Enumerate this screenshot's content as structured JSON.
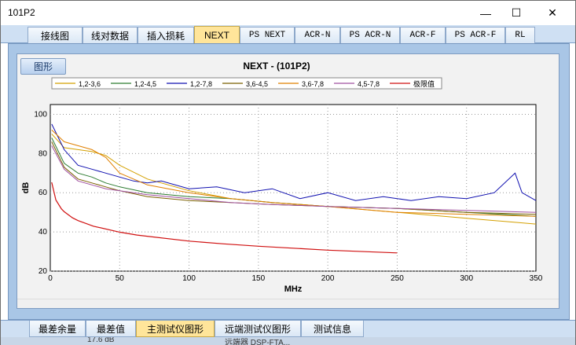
{
  "window": {
    "title": "101P2",
    "minimize_glyph": "—",
    "maximize_glyph": "☐",
    "close_glyph": "✕"
  },
  "tabs": [
    "接线图",
    "线对数据",
    "插入损耗",
    "NEXT",
    "PS NEXT",
    "ACR-N",
    "PS ACR-N",
    "ACR-F",
    "PS ACR-F",
    "RL"
  ],
  "active_tab": "NEXT",
  "graph_button": "图形",
  "bottom_tabs": [
    "最差余量",
    "最差值",
    "主测试仪图形",
    "远端测试仪图形",
    "测试信息"
  ],
  "active_bottom_tab": "主测试仪图形",
  "status_strip": [
    "17.6 dB",
    "远端器 DSP-FTA..."
  ],
  "colors": {
    "accent_tab": "#ffe59a",
    "frame": "#a9c6e6"
  },
  "chart_data": {
    "type": "line",
    "title": "NEXT - (101P2)",
    "xlabel": "MHz",
    "ylabel": "dB",
    "xlim": [
      0,
      350
    ],
    "ylim": [
      20,
      105
    ],
    "x_ticks": [
      0,
      50,
      100,
      150,
      200,
      250,
      300,
      350
    ],
    "y_ticks": [
      20,
      40,
      60,
      80,
      100
    ],
    "grid": true,
    "legend_placement": "top",
    "series": [
      {
        "name": "1,2-3,6",
        "color": "#d4a000",
        "x": [
          1,
          10,
          20,
          30,
          40,
          50,
          70,
          100,
          130,
          160,
          200,
          250,
          300,
          350
        ],
        "y": [
          90,
          83,
          82,
          81,
          79,
          74,
          67,
          61,
          57,
          55,
          53,
          50,
          47,
          44
        ]
      },
      {
        "name": "1,2-4,5",
        "color": "#2e7d32",
        "x": [
          1,
          10,
          20,
          30,
          40,
          50,
          70,
          100,
          130,
          160,
          200,
          250,
          300,
          350
        ],
        "y": [
          88,
          75,
          70,
          68,
          65,
          63,
          60,
          58,
          57,
          55,
          53,
          52,
          50,
          48
        ]
      },
      {
        "name": "1,2-7,8",
        "color": "#1010b0",
        "x": [
          1,
          10,
          20,
          30,
          40,
          50,
          60,
          70,
          80,
          100,
          120,
          140,
          160,
          180,
          200,
          220,
          240,
          260,
          280,
          300,
          320,
          335,
          340,
          350
        ],
        "y": [
          95,
          82,
          74,
          72,
          70,
          68,
          66,
          65,
          66,
          62,
          63,
          60,
          62,
          57,
          60,
          56,
          58,
          56,
          58,
          57,
          60,
          70,
          60,
          56
        ]
      },
      {
        "name": "3,6-4,5",
        "color": "#7a6000",
        "x": [
          1,
          10,
          20,
          30,
          40,
          50,
          70,
          100,
          130,
          160,
          200,
          250,
          300,
          350
        ],
        "y": [
          86,
          73,
          67,
          65,
          63,
          61,
          58,
          56,
          55,
          54,
          53,
          52,
          50,
          49
        ]
      },
      {
        "name": "3,6-7,8",
        "color": "#e08000",
        "x": [
          1,
          10,
          20,
          30,
          40,
          50,
          70,
          100,
          130,
          160,
          200,
          250,
          300,
          350
        ],
        "y": [
          92,
          86,
          84,
          82,
          78,
          70,
          64,
          60,
          57,
          55,
          53,
          50,
          49,
          48
        ]
      },
      {
        "name": "4,5-7,8",
        "color": "#a050a0",
        "x": [
          1,
          10,
          20,
          30,
          40,
          50,
          70,
          100,
          130,
          160,
          200,
          250,
          300,
          350
        ],
        "y": [
          84,
          72,
          66,
          64,
          62,
          61,
          59,
          57,
          55,
          54,
          53,
          52,
          51,
          50
        ]
      },
      {
        "name": "极限值",
        "color": "#d01010",
        "x": [
          1,
          4,
          8,
          10,
          16,
          20,
          31.25,
          50,
          62.5,
          100,
          125,
          150,
          200,
          250
        ],
        "y": [
          65.3,
          56.3,
          51.8,
          50.3,
          47.2,
          45.8,
          42.9,
          39.9,
          38.4,
          35.3,
          33.9,
          32.7,
          30.7,
          29.3
        ]
      }
    ]
  }
}
